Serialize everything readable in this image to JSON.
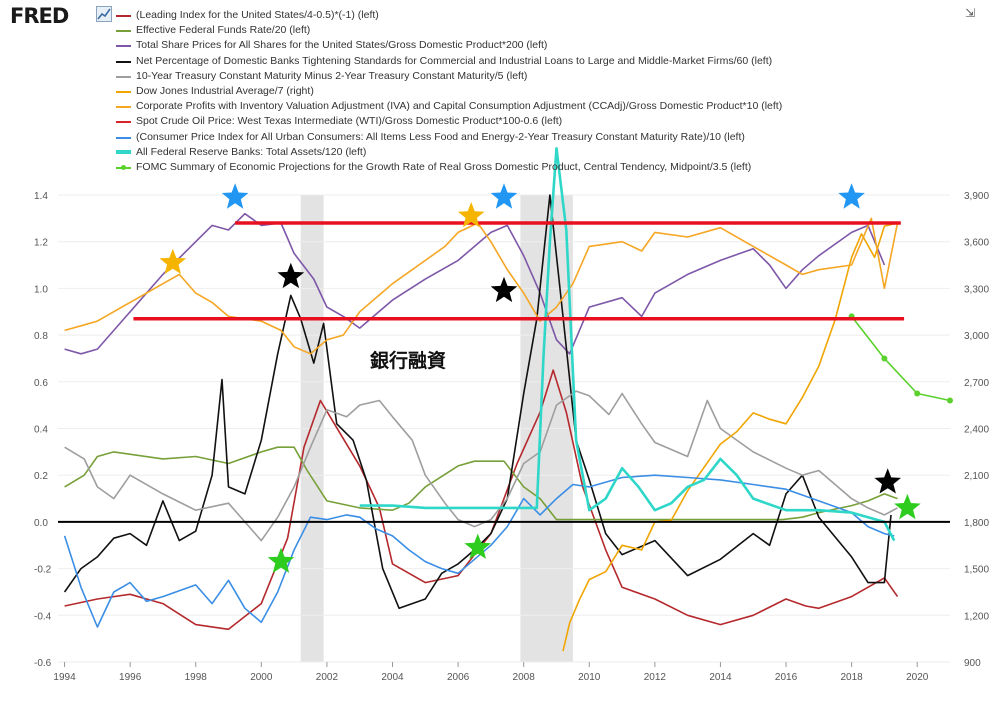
{
  "header": {
    "logo_text": "FRED",
    "logo_mark": "fred-chart-icon",
    "collapse_icon": "collapse-icon"
  },
  "chart_data": {
    "type": "line",
    "xlabel": "",
    "ylabel": "",
    "x_ticks": [
      "1994",
      "1996",
      "1998",
      "2000",
      "2002",
      "2004",
      "2006",
      "2008",
      "2010",
      "2012",
      "2014",
      "2016",
      "2018",
      "2020"
    ],
    "y_left_ticks": [
      "1.4",
      "1.2",
      "1.0",
      "0.8",
      "0.6",
      "0.4",
      "0.2",
      "0.0",
      "-0.2",
      "-0.4",
      "-0.6"
    ],
    "y_right_ticks": [
      "3,900",
      "3,600",
      "3,300",
      "3,000",
      "2,700",
      "2,400",
      "2,100",
      "1,800",
      "1,500",
      "1,200",
      "900"
    ],
    "ylim_left": [
      -0.6,
      1.4
    ],
    "ylim_right": [
      900,
      3900
    ],
    "xlim": [
      1993.8,
      2021.0
    ],
    "grid": "horizontal",
    "legend_position": "top-left",
    "recessions": [
      [
        2001.2,
        2001.9
      ],
      [
        2007.9,
        2009.5
      ]
    ],
    "annotation_text": "銀行融資",
    "horizontal_lines": [
      {
        "y": 1.28,
        "x": [
          1999.2,
          2019.5
        ],
        "color": "#e8101e"
      },
      {
        "y": 0.87,
        "x": [
          1996.1,
          2019.6
        ],
        "color": "#e8101e"
      },
      {
        "y": 0.0,
        "x": [
          1993.8,
          2021.0
        ],
        "color": "#000000"
      }
    ],
    "stars": [
      {
        "color": "#2196f3",
        "x": 1999.2,
        "y": 1.39
      },
      {
        "color": "#2196f3",
        "x": 2007.4,
        "y": 1.39
      },
      {
        "color": "#2196f3",
        "x": 2018.0,
        "y": 1.39
      },
      {
        "color": "#f5b400",
        "x": 1997.3,
        "y": 1.11
      },
      {
        "color": "#f5b400",
        "x": 2006.4,
        "y": 1.31
      },
      {
        "color": "#000000",
        "x": 2000.9,
        "y": 1.05
      },
      {
        "color": "#000000",
        "x": 2007.4,
        "y": 0.99
      },
      {
        "color": "#000000",
        "x": 2019.1,
        "y": 0.17
      },
      {
        "color": "#2ecc1f",
        "x": 2000.6,
        "y": -0.17
      },
      {
        "color": "#2ecc1f",
        "x": 2006.6,
        "y": -0.11
      },
      {
        "color": "#2ecc1f",
        "x": 2019.7,
        "y": 0.06
      }
    ],
    "series": [
      {
        "name": "(Leading Index for the United States/4-0.5)*(-1) (left)",
        "color": "#b5292d",
        "axis": "left",
        "x": [
          1994,
          1995,
          1996,
          1997,
          1998,
          1999,
          2000,
          2000.8,
          2001.3,
          2001.8,
          2002.4,
          2003,
          2003.6,
          2004,
          2005,
          2006,
          2007,
          2007.8,
          2008.5,
          2008.9,
          2009.3,
          2009.8,
          2010.5,
          2011,
          2012,
          2013,
          2014,
          2015,
          2016,
          2016.6,
          2017,
          2018,
          2019,
          2019.4
        ],
        "y": [
          -0.36,
          -0.33,
          -0.31,
          -0.35,
          -0.44,
          -0.46,
          -0.35,
          -0.07,
          0.32,
          0.52,
          0.38,
          0.24,
          0.06,
          -0.18,
          -0.26,
          -0.23,
          -0.05,
          0.25,
          0.47,
          0.65,
          0.47,
          0.15,
          -0.12,
          -0.28,
          -0.33,
          -0.4,
          -0.44,
          -0.4,
          -0.33,
          -0.36,
          -0.37,
          -0.32,
          -0.24,
          -0.32
        ]
      },
      {
        "name": "Effective Federal Funds Rate/20 (left)",
        "color": "#77a038",
        "axis": "left",
        "x": [
          1994,
          1994.6,
          1995,
          1995.5,
          1997,
          1998,
          1999,
          2000,
          2000.5,
          2001,
          2001.4,
          2002,
          2003,
          2004,
          2004.5,
          2005,
          2006,
          2006.5,
          2007.4,
          2008,
          2008.5,
          2009,
          2015.9,
          2016.5,
          2017,
          2018,
          2018.5,
          2019,
          2019.4
        ],
        "y": [
          0.15,
          0.2,
          0.28,
          0.3,
          0.27,
          0.28,
          0.25,
          0.3,
          0.32,
          0.32,
          0.22,
          0.09,
          0.06,
          0.05,
          0.08,
          0.15,
          0.24,
          0.26,
          0.26,
          0.15,
          0.1,
          0.01,
          0.01,
          0.02,
          0.04,
          0.07,
          0.09,
          0.12,
          0.1
        ]
      },
      {
        "name": "Total Share Prices for All Shares for the United States/Gross Domestic Product*200 (left)",
        "color": "#7e57a8",
        "axis": "left",
        "x": [
          1994,
          1994.5,
          1995,
          1996,
          1997,
          1998,
          1998.5,
          1999,
          1999.5,
          2000,
          2000.6,
          2001,
          2001.6,
          2002,
          2002.5,
          2003,
          2004,
          2005,
          2006,
          2007,
          2007.5,
          2008,
          2008.5,
          2009,
          2009.4,
          2010,
          2011,
          2011.6,
          2012,
          2013,
          2014,
          2015,
          2015.5,
          2016,
          2016.5,
          2017,
          2018,
          2018.5,
          2019
        ],
        "y": [
          0.74,
          0.72,
          0.74,
          0.9,
          1.06,
          1.2,
          1.27,
          1.25,
          1.32,
          1.27,
          1.28,
          1.15,
          1.04,
          0.92,
          0.88,
          0.83,
          0.95,
          1.04,
          1.12,
          1.24,
          1.27,
          1.14,
          0.98,
          0.78,
          0.72,
          0.92,
          0.96,
          0.88,
          0.98,
          1.06,
          1.12,
          1.17,
          1.1,
          1.0,
          1.08,
          1.14,
          1.24,
          1.27,
          1.1
        ]
      },
      {
        "name": "Net Percentage of Domestic Banks Tightening Standards for Commercial and Industrial Loans to Large and Middle-Market Firms/60 (left)",
        "color": "#111111",
        "axis": "left",
        "x": [
          1994,
          1994.5,
          1995,
          1995.5,
          1996,
          1996.5,
          1997,
          1997.5,
          1998,
          1998.5,
          1998.8,
          1999,
          1999.5,
          2000,
          2000.5,
          2000.9,
          2001.2,
          2001.6,
          2001.9,
          2002.3,
          2002.8,
          2003.2,
          2003.7,
          2004.2,
          2005,
          2005.5,
          2006,
          2006.5,
          2007,
          2007.5,
          2008,
          2008.4,
          2008.8,
          2009.2,
          2009.6,
          2010,
          2010.5,
          2011,
          2012,
          2013,
          2014,
          2015,
          2015.5,
          2016,
          2016.5,
          2017,
          2018,
          2018.5,
          2019,
          2019.2
        ],
        "y": [
          -0.3,
          -0.2,
          -0.15,
          -0.07,
          -0.05,
          -0.1,
          0.09,
          -0.08,
          -0.04,
          0.2,
          0.61,
          0.15,
          0.12,
          0.35,
          0.72,
          0.97,
          0.87,
          0.68,
          0.85,
          0.42,
          0.35,
          0.18,
          -0.2,
          -0.37,
          -0.33,
          -0.22,
          -0.18,
          -0.12,
          -0.05,
          0.1,
          0.55,
          0.87,
          1.4,
          0.88,
          0.35,
          0.18,
          -0.05,
          -0.14,
          -0.08,
          -0.23,
          -0.16,
          -0.05,
          -0.1,
          0.12,
          0.2,
          0.02,
          -0.15,
          -0.26,
          -0.26,
          0.03
        ]
      },
      {
        "name": "10-Year Treasury Constant Maturity Minus 2-Year Treasury Constant Maturity/5 (left)",
        "color": "#9e9e9e",
        "axis": "left",
        "x": [
          1994,
          1994.6,
          1995,
          1995.5,
          1996,
          1997,
          1998,
          1999,
          2000,
          2000.5,
          2001,
          2001.5,
          2002,
          2002.6,
          2003,
          2003.6,
          2004,
          2004.6,
          2005,
          2005.6,
          2006,
          2006.5,
          2007,
          2007.5,
          2008,
          2008.5,
          2009,
          2009.6,
          2010,
          2010.6,
          2011,
          2011.6,
          2012,
          2013,
          2013.6,
          2014,
          2015,
          2016,
          2016.5,
          2017,
          2018,
          2018.5,
          2019,
          2019.4
        ],
        "y": [
          0.32,
          0.27,
          0.15,
          0.1,
          0.2,
          0.12,
          0.05,
          0.08,
          -0.08,
          0.02,
          0.15,
          0.32,
          0.48,
          0.45,
          0.5,
          0.52,
          0.45,
          0.35,
          0.2,
          0.08,
          0.01,
          -0.02,
          0.01,
          0.1,
          0.25,
          0.3,
          0.5,
          0.56,
          0.54,
          0.46,
          0.55,
          0.42,
          0.34,
          0.28,
          0.52,
          0.4,
          0.3,
          0.23,
          0.2,
          0.22,
          0.1,
          0.06,
          0.03,
          0.06
        ]
      },
      {
        "name": "Dow Jones Industrial Average/7 (right)",
        "color": "#f0a500",
        "axis": "right",
        "x": [
          2009.2,
          2009.4,
          2009.7,
          2010,
          2010.5,
          2011,
          2011.6,
          2012,
          2012.5,
          2013,
          2013.5,
          2014,
          2014.5,
          2015,
          2015.5,
          2016,
          2016.5,
          2017,
          2017.5,
          2018,
          2018.3,
          2018.7,
          2019,
          2019.4
        ],
        "y": [
          970,
          1150,
          1300,
          1430,
          1480,
          1650,
          1620,
          1800,
          1810,
          2000,
          2150,
          2300,
          2380,
          2500,
          2460,
          2430,
          2600,
          2800,
          3100,
          3500,
          3650,
          3500,
          3700,
          3720
        ]
      },
      {
        "name": "Corporate Profits with Inventory Valuation Adjustment (IVA) and Capital Consumption Adjustment (CCAdj)/Gross Domestic Product*10 (left)",
        "color": "#f5a623",
        "axis": "left",
        "x": [
          1994,
          1994.5,
          1995,
          1996,
          1997,
          1997.5,
          1998,
          1998.5,
          1999,
          2000,
          2000.6,
          2001,
          2001.5,
          2002,
          2002.5,
          2003,
          2004,
          2005,
          2005.6,
          2006,
          2006.6,
          2007,
          2007.5,
          2008,
          2008.5,
          2009,
          2009.5,
          2010,
          2011,
          2011.6,
          2012,
          2013,
          2014,
          2015,
          2016,
          2016.5,
          2017,
          2018,
          2018.6,
          2019,
          2019.4
        ],
        "y": [
          0.82,
          0.84,
          0.86,
          0.94,
          1.02,
          1.06,
          0.98,
          0.94,
          0.88,
          0.86,
          0.82,
          0.75,
          0.72,
          0.78,
          0.8,
          0.9,
          1.02,
          1.12,
          1.18,
          1.24,
          1.28,
          1.2,
          1.08,
          0.98,
          0.86,
          0.92,
          1.02,
          1.18,
          1.2,
          1.16,
          1.24,
          1.22,
          1.26,
          1.18,
          1.1,
          1.06,
          1.08,
          1.1,
          1.3,
          1.0,
          1.28
        ]
      },
      {
        "name": "Spot Crude Oil Price: West Texas Intermediate (WTI)/Gross Domestic Product*100-0.6 (left)",
        "color": "#d8232a",
        "axis": "left",
        "x": [],
        "y": []
      },
      {
        "name": "(Consumer Price Index for All Urban Consumers: All Items Less Food and Energy-2-Year Treasury Constant Maturity Rate)/10 (left)",
        "color": "#3a8ee6",
        "axis": "left",
        "x": [
          1994,
          1994.5,
          1995,
          1995.5,
          1996,
          1996.5,
          1997,
          1998,
          1998.5,
          1999,
          1999.5,
          2000,
          2000.5,
          2001,
          2001.5,
          2002,
          2002.6,
          2003,
          2003.5,
          2004,
          2004.5,
          2005,
          2005.5,
          2006,
          2006.5,
          2007,
          2007.5,
          2008,
          2008.5,
          2009,
          2009.5,
          2010,
          2011,
          2012,
          2013,
          2014,
          2015,
          2016,
          2017,
          2018,
          2018.5,
          2019,
          2019.3
        ],
        "y": [
          -0.06,
          -0.28,
          -0.45,
          -0.3,
          -0.26,
          -0.34,
          -0.32,
          -0.27,
          -0.35,
          -0.25,
          -0.37,
          -0.43,
          -0.3,
          -0.12,
          0.02,
          0.01,
          0.03,
          0.02,
          -0.03,
          -0.06,
          -0.12,
          -0.17,
          -0.2,
          -0.22,
          -0.16,
          -0.1,
          -0.02,
          0.1,
          0.03,
          0.1,
          0.16,
          0.15,
          0.19,
          0.2,
          0.19,
          0.18,
          0.16,
          0.14,
          0.09,
          0.04,
          -0.02,
          -0.05,
          -0.06
        ]
      },
      {
        "name": "All Federal Reserve Banks: Total Assets/120 (left)",
        "color": "#2ed7c8",
        "axis": "left",
        "x": [
          2003,
          2004,
          2005,
          2006,
          2007,
          2008.4,
          2008.6,
          2008.8,
          2009,
          2009.3,
          2009.6,
          2010,
          2010.5,
          2011,
          2011.5,
          2012,
          2012.5,
          2013,
          2013.5,
          2014,
          2014.5,
          2015,
          2016,
          2017,
          2018,
          2019,
          2019.3
        ],
        "y": [
          0.07,
          0.07,
          0.06,
          0.06,
          0.06,
          0.06,
          0.7,
          1.2,
          1.6,
          1.25,
          0.35,
          0.05,
          0.1,
          0.23,
          0.15,
          0.05,
          0.08,
          0.15,
          0.18,
          0.27,
          0.2,
          0.1,
          0.05,
          0.05,
          0.04,
          0.0,
          -0.08
        ]
      },
      {
        "name": "FOMC Summary of Economic Projections for the Growth Rate of Real Gross Domestic Product, Central Tendency, Midpoint/3.5 (left)",
        "color": "#5ad12d",
        "axis": "left",
        "markers": true,
        "x": [
          2018.0,
          2019.0,
          2020.0,
          2021.0
        ],
        "y": [
          0.88,
          0.7,
          0.55,
          0.52
        ]
      }
    ]
  }
}
